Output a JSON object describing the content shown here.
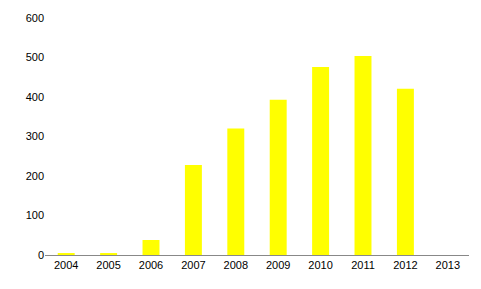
{
  "chart_data": {
    "type": "bar",
    "categories": [
      "2004",
      "2005",
      "2006",
      "2007",
      "2008",
      "2009",
      "2010",
      "2011",
      "2012",
      "2013"
    ],
    "values": [
      5,
      5,
      38,
      228,
      320,
      393,
      476,
      504,
      421,
      0
    ],
    "color": "#ffff00",
    "ylim": [
      0,
      600
    ],
    "yticks": [
      0,
      100,
      200,
      300,
      400,
      500,
      600
    ],
    "grid": false
  }
}
